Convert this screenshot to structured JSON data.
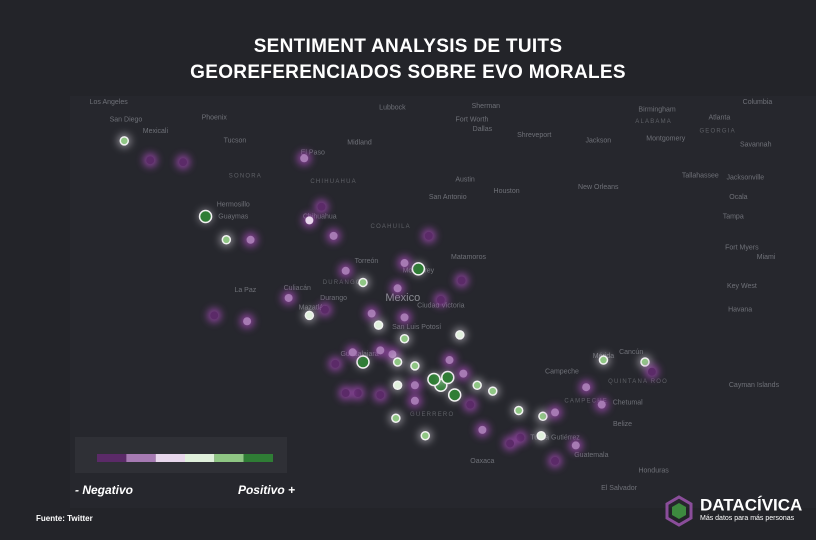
{
  "title": [
    "SENTIMENT ANALYSIS DE TUITS",
    "GEOREFERENCIADOS SOBRE EVO MORALES"
  ],
  "map": {
    "points": [
      {
        "lon": -117.3,
        "lat": 32.1,
        "sentiment": 5
      },
      {
        "lon": -113.9,
        "lat": 31.0,
        "sentiment": 1
      },
      {
        "lon": -115.8,
        "lat": 31.1,
        "sentiment": 1
      },
      {
        "lon": -112.6,
        "lat": 28.2,
        "sentiment": 6
      },
      {
        "lon": -111.4,
        "lat": 27.0,
        "sentiment": 5
      },
      {
        "lon": -110.0,
        "lat": 27.0,
        "sentiment": 2
      },
      {
        "lon": -106.9,
        "lat": 31.2,
        "sentiment": 2
      },
      {
        "lon": -106.6,
        "lat": 28.0,
        "sentiment": 3
      },
      {
        "lon": -105.9,
        "lat": 28.7,
        "sentiment": 1
      },
      {
        "lon": -105.2,
        "lat": 27.2,
        "sentiment": 2
      },
      {
        "lon": -104.5,
        "lat": 25.4,
        "sentiment": 2
      },
      {
        "lon": -103.5,
        "lat": 24.8,
        "sentiment": 5
      },
      {
        "lon": -107.8,
        "lat": 24.0,
        "sentiment": 2
      },
      {
        "lon": -106.6,
        "lat": 23.1,
        "sentiment": 4
      },
      {
        "lon": -105.7,
        "lat": 23.4,
        "sentiment": 1
      },
      {
        "lon": -112.1,
        "lat": 23.1,
        "sentiment": 1
      },
      {
        "lon": -110.2,
        "lat": 22.8,
        "sentiment": 2
      },
      {
        "lon": -100.3,
        "lat": 25.5,
        "sentiment": 6
      },
      {
        "lon": -101.1,
        "lat": 25.8,
        "sentiment": 2
      },
      {
        "lon": -99.7,
        "lat": 27.2,
        "sentiment": 1
      },
      {
        "lon": -101.5,
        "lat": 24.5,
        "sentiment": 2
      },
      {
        "lon": -103.0,
        "lat": 23.2,
        "sentiment": 2
      },
      {
        "lon": -102.6,
        "lat": 22.6,
        "sentiment": 4
      },
      {
        "lon": -101.1,
        "lat": 23.0,
        "sentiment": 2
      },
      {
        "lon": -101.1,
        "lat": 21.9,
        "sentiment": 5
      },
      {
        "lon": -101.8,
        "lat": 21.1,
        "sentiment": 2
      },
      {
        "lon": -100.5,
        "lat": 20.5,
        "sentiment": 5
      },
      {
        "lon": -103.5,
        "lat": 20.7,
        "sentiment": 6
      },
      {
        "lon": -104.1,
        "lat": 21.2,
        "sentiment": 2
      },
      {
        "lon": -102.5,
        "lat": 21.3,
        "sentiment": 2
      },
      {
        "lon": -101.5,
        "lat": 20.7,
        "sentiment": 5
      },
      {
        "lon": -99.0,
        "lat": 19.5,
        "sentiment": 6
      },
      {
        "lon": -99.4,
        "lat": 19.8,
        "sentiment": 6
      },
      {
        "lon": -98.6,
        "lat": 19.9,
        "sentiment": 6
      },
      {
        "lon": -98.2,
        "lat": 19.0,
        "sentiment": 6
      },
      {
        "lon": -97.7,
        "lat": 20.1,
        "sentiment": 2
      },
      {
        "lon": -96.9,
        "lat": 19.5,
        "sentiment": 5
      },
      {
        "lon": -96.0,
        "lat": 19.2,
        "sentiment": 5
      },
      {
        "lon": -97.3,
        "lat": 18.5,
        "sentiment": 1
      },
      {
        "lon": -97.9,
        "lat": 22.1,
        "sentiment": 4
      },
      {
        "lon": -101.5,
        "lat": 19.5,
        "sentiment": 4
      },
      {
        "lon": -100.5,
        "lat": 19.5,
        "sentiment": 2
      },
      {
        "lon": -101.6,
        "lat": 17.8,
        "sentiment": 5
      },
      {
        "lon": -103.8,
        "lat": 19.1,
        "sentiment": 1
      },
      {
        "lon": -102.5,
        "lat": 19.0,
        "sentiment": 1
      },
      {
        "lon": -100.5,
        "lat": 18.7,
        "sentiment": 2
      },
      {
        "lon": -99.9,
        "lat": 16.9,
        "sentiment": 5
      },
      {
        "lon": -96.6,
        "lat": 17.2,
        "sentiment": 2
      },
      {
        "lon": -94.5,
        "lat": 18.2,
        "sentiment": 5
      },
      {
        "lon": -93.1,
        "lat": 17.9,
        "sentiment": 5
      },
      {
        "lon": -92.4,
        "lat": 18.1,
        "sentiment": 2
      },
      {
        "lon": -93.2,
        "lat": 16.9,
        "sentiment": 4
      },
      {
        "lon": -94.4,
        "lat": 16.8,
        "sentiment": 1
      },
      {
        "lon": -92.4,
        "lat": 15.6,
        "sentiment": 1
      },
      {
        "lon": -89.6,
        "lat": 20.8,
        "sentiment": 5
      },
      {
        "lon": -87.2,
        "lat": 20.7,
        "sentiment": 5
      },
      {
        "lon": -90.6,
        "lat": 19.4,
        "sentiment": 2
      },
      {
        "lon": -89.7,
        "lat": 18.5,
        "sentiment": 2
      },
      {
        "lon": -86.8,
        "lat": 20.2,
        "sentiment": 1
      },
      {
        "lon": -105.1,
        "lat": 20.6,
        "sentiment": 1
      },
      {
        "lon": -104.5,
        "lat": 19.1,
        "sentiment": 1
      },
      {
        "lon": -99.0,
        "lat": 23.9,
        "sentiment": 1
      },
      {
        "lon": -97.8,
        "lat": 24.9,
        "sentiment": 1
      },
      {
        "lon": -98.5,
        "lat": 20.8,
        "sentiment": 2
      },
      {
        "lon": -95.0,
        "lat": 16.5,
        "sentiment": 1
      },
      {
        "lon": -91.2,
        "lat": 16.4,
        "sentiment": 2
      }
    ],
    "places": [
      {
        "name": "Los Angeles",
        "lon": -118.2,
        "lat": 34.1
      },
      {
        "name": "San Diego",
        "lon": -117.2,
        "lat": 33.2
      },
      {
        "name": "Mexicali",
        "lon": -115.5,
        "lat": 32.6
      },
      {
        "name": "Phoenix",
        "lon": -112.1,
        "lat": 33.3
      },
      {
        "name": "Tucson",
        "lon": -110.9,
        "lat": 32.1
      },
      {
        "name": "Lubbock",
        "lon": -101.8,
        "lat": 33.8
      },
      {
        "name": "Sherman",
        "lon": -96.4,
        "lat": 33.9
      },
      {
        "name": "Fort Worth",
        "lon": -97.2,
        "lat": 33.2
      },
      {
        "name": "Dallas",
        "lon": -96.6,
        "lat": 32.7
      },
      {
        "name": "Shreveport",
        "lon": -93.6,
        "lat": 32.4
      },
      {
        "name": "Jackson",
        "lon": -89.9,
        "lat": 32.1
      },
      {
        "name": "Birmingham",
        "lon": -86.5,
        "lat": 33.7
      },
      {
        "name": "Atlanta",
        "lon": -82.9,
        "lat": 33.3
      },
      {
        "name": "Montgomery",
        "lon": -86.0,
        "lat": 32.2
      },
      {
        "name": "Columbia",
        "lon": -80.7,
        "lat": 34.1
      },
      {
        "name": "Savannah",
        "lon": -80.8,
        "lat": 31.9
      },
      {
        "name": "Midland",
        "lon": -103.7,
        "lat": 32.0
      },
      {
        "name": "El Paso",
        "lon": -106.4,
        "lat": 31.5
      },
      {
        "name": "Austin",
        "lon": -97.6,
        "lat": 30.1
      },
      {
        "name": "Houston",
        "lon": -95.2,
        "lat": 29.5
      },
      {
        "name": "San Antonio",
        "lon": -98.6,
        "lat": 29.2
      },
      {
        "name": "New Orleans",
        "lon": -89.9,
        "lat": 29.7
      },
      {
        "name": "Tallahassee",
        "lon": -84.0,
        "lat": 30.3
      },
      {
        "name": "Jacksonville",
        "lon": -81.4,
        "lat": 30.2
      },
      {
        "name": "Ocala",
        "lon": -81.8,
        "lat": 29.2
      },
      {
        "name": "Tampa",
        "lon": -82.1,
        "lat": 28.2
      },
      {
        "name": "Fort Myers",
        "lon": -81.6,
        "lat": 26.6
      },
      {
        "name": "Miami",
        "lon": -80.2,
        "lat": 26.1
      },
      {
        "name": "Key West",
        "lon": -81.6,
        "lat": 24.6
      },
      {
        "name": "Havana",
        "lon": -81.7,
        "lat": 23.4
      },
      {
        "name": "Hermosillo",
        "lon": -111.0,
        "lat": 28.8
      },
      {
        "name": "Guaymas",
        "lon": -111.0,
        "lat": 28.2
      },
      {
        "name": "Chihuahua",
        "lon": -106.0,
        "lat": 28.2
      },
      {
        "name": "Torreón",
        "lon": -103.3,
        "lat": 25.9
      },
      {
        "name": "Monterrey",
        "lon": -100.3,
        "lat": 25.4
      },
      {
        "name": "Matamoros",
        "lon": -97.4,
        "lat": 26.1
      },
      {
        "name": "Culiacán",
        "lon": -107.3,
        "lat": 24.5
      },
      {
        "name": "Mazatlán",
        "lon": -106.4,
        "lat": 23.5
      },
      {
        "name": "La Paz",
        "lon": -110.3,
        "lat": 24.4
      },
      {
        "name": "Durango",
        "lon": -105.2,
        "lat": 24.0
      },
      {
        "name": "Ciudad Victoria",
        "lon": -99.0,
        "lat": 23.6
      },
      {
        "name": "San Luis Potosí",
        "lon": -100.4,
        "lat": 22.5
      },
      {
        "name": "Guadalajara",
        "lon": -103.7,
        "lat": 21.1
      },
      {
        "name": "Campeche",
        "lon": -92.0,
        "lat": 20.2
      },
      {
        "name": "Mérida",
        "lon": -89.6,
        "lat": 21.0
      },
      {
        "name": "Cancún",
        "lon": -88.0,
        "lat": 21.2
      },
      {
        "name": "Chetumal",
        "lon": -88.2,
        "lat": 18.6
      },
      {
        "name": "Belize",
        "lon": -88.5,
        "lat": 17.5
      },
      {
        "name": "Tuxtla Gutiérrez",
        "lon": -92.4,
        "lat": 16.8
      },
      {
        "name": "Guatemala",
        "lon": -90.3,
        "lat": 15.9
      },
      {
        "name": "Honduras",
        "lon": -86.7,
        "lat": 15.1
      },
      {
        "name": "El Salvador",
        "lon": -88.7,
        "lat": 14.2
      },
      {
        "name": "Oaxaca",
        "lon": -96.6,
        "lat": 15.6
      },
      {
        "name": "Cayman Islands",
        "lon": -80.9,
        "lat": 19.5
      }
    ],
    "regions": [
      {
        "name": "SONORA",
        "lon": -110.3,
        "lat": 30.3
      },
      {
        "name": "CHIHUAHUA",
        "lon": -105.2,
        "lat": 30.0
      },
      {
        "name": "COAHUILA",
        "lon": -101.9,
        "lat": 27.7
      },
      {
        "name": "DURANGO",
        "lon": -104.7,
        "lat": 24.8
      },
      {
        "name": "ALABAMA",
        "lon": -86.7,
        "lat": 33.1
      },
      {
        "name": "GEORGIA",
        "lon": -83.0,
        "lat": 32.6
      },
      {
        "name": "GUERRERO",
        "lon": -99.5,
        "lat": 18.0
      },
      {
        "name": "CAMPECHE",
        "lon": -90.6,
        "lat": 18.7
      },
      {
        "name": "QUINTANA ROO",
        "lon": -87.6,
        "lat": 19.7
      },
      {
        "name": "Mexico",
        "lon": -101.2,
        "lat": 24.0
      }
    ]
  },
  "legend": {
    "colors": [
      "#5b2a68",
      "#a67ab3",
      "#e8d7ec",
      "#e0f0dc",
      "#8fc684",
      "#2f7d35"
    ],
    "low": "- Negativo",
    "high": "Positivo +"
  },
  "source": "Fuente: Twitter",
  "brand": {
    "name": "DATACÍVICA",
    "tagline": "Más datos para más personas"
  }
}
